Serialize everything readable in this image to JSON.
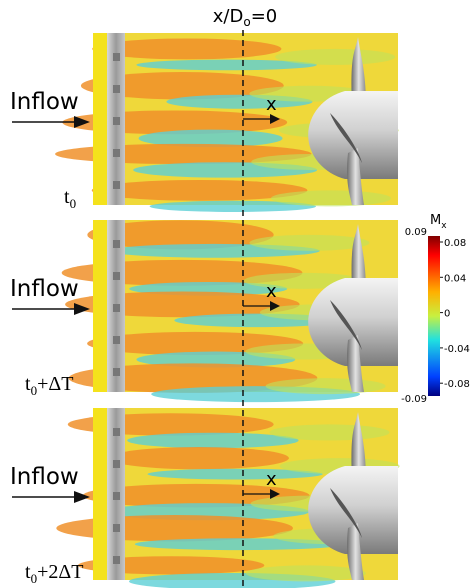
{
  "title": {
    "text": "x/D",
    "sub": "o",
    "rest": "=0"
  },
  "panels": [
    {
      "inflow": "Inflow",
      "x_label": "x",
      "time": {
        "base": "t",
        "sub": "0"
      }
    },
    {
      "inflow": "Inflow",
      "x_label": "x",
      "time": {
        "base": "t",
        "sub": "0",
        "rest": "+ΔT"
      }
    },
    {
      "inflow": "Inflow",
      "x_label": "x",
      "time": {
        "base": "t",
        "sub": "0",
        "rest": "+2ΔT"
      }
    }
  ],
  "colorbar": {
    "label": {
      "text": "M",
      "sub": "x"
    },
    "max": "0.09",
    "min": "-0.09",
    "ticks": [
      "0.08",
      "0.04",
      "0",
      "-0.04",
      "-0.08"
    ]
  }
}
